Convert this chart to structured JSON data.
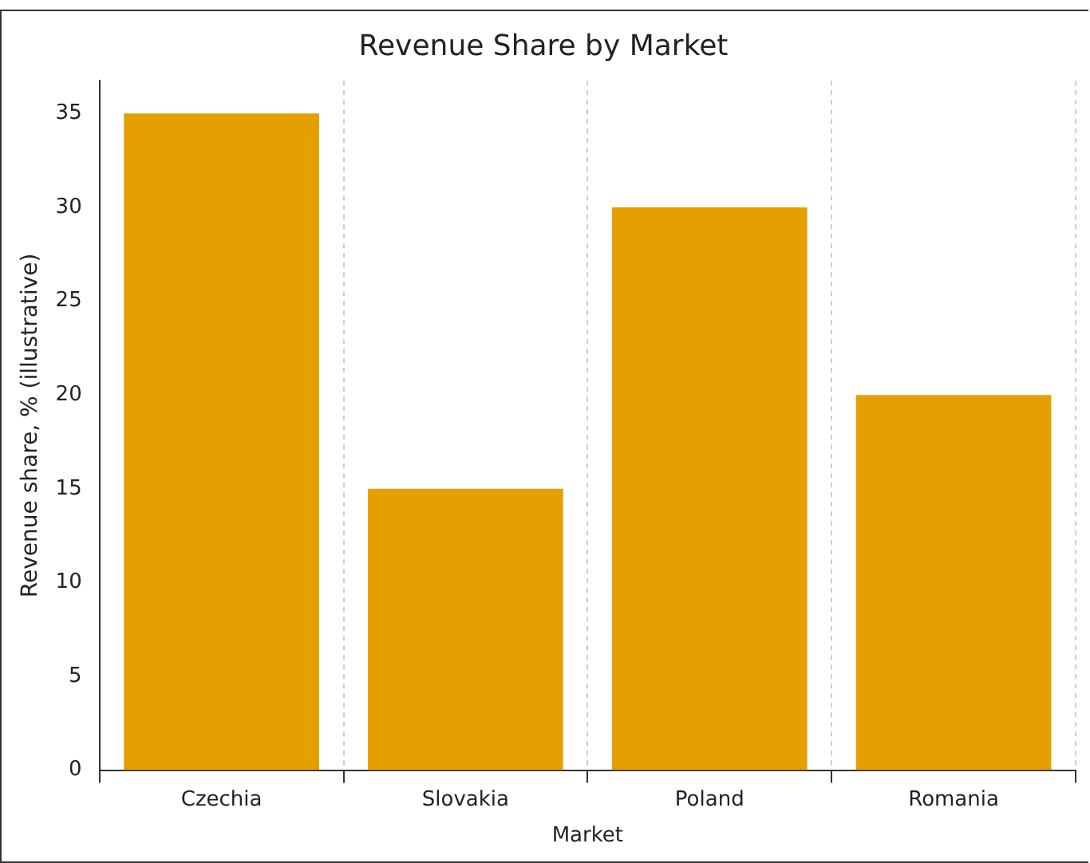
{
  "chart_data": {
    "type": "bar",
    "title": "Revenue Share by Market",
    "xlabel": "Market",
    "ylabel": "Revenue share, % (illustrative)",
    "categories": [
      "Czechia",
      "Slovakia",
      "Poland",
      "Romania"
    ],
    "values": [
      35,
      15,
      30,
      20
    ],
    "color": "#e69f00",
    "ylim": [
      0,
      36.75
    ],
    "yticks": [
      0,
      5,
      10,
      15,
      20,
      25,
      30,
      35
    ],
    "grid": "x"
  }
}
